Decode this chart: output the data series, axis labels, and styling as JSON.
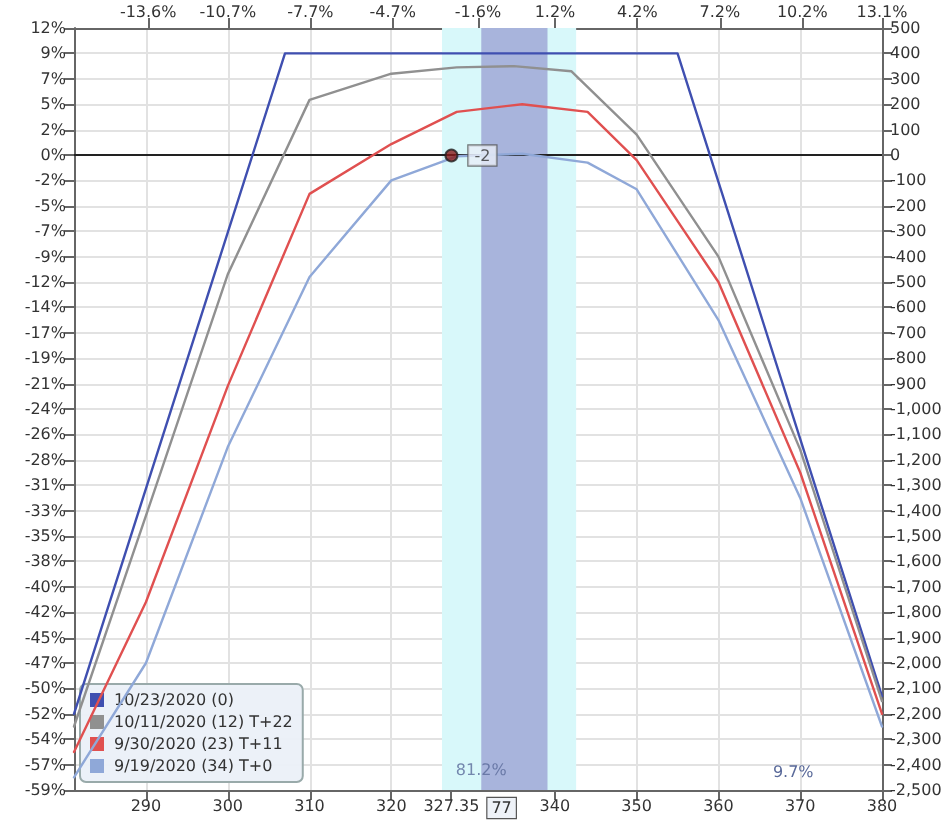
{
  "chart_data": {
    "type": "line",
    "x": [
      281.2,
      290,
      300,
      310,
      320,
      328,
      336,
      344,
      350,
      360,
      370,
      380
    ],
    "series": [
      {
        "name": "10/23/2020 (0)",
        "color": "#3f4fb0",
        "x": [
          281.2,
          307,
          355,
          380
        ],
        "values": [
          -2200,
          400,
          400,
          -2130
        ]
      },
      {
        "name": "10/11/2020 (12) T+22",
        "color": "#909090",
        "x": [
          281.2,
          290,
          300,
          310,
          320,
          328,
          335,
          342,
          350,
          360,
          370,
          380
        ],
        "values": [
          -2250,
          -1420,
          -470,
          217,
          320,
          345,
          350,
          330,
          80,
          -400,
          -1160,
          -2150
        ]
      },
      {
        "name": "9/30/2020 (23) T+11",
        "color": "#e05050",
        "values": [
          -2350,
          -1760,
          -910,
          -153,
          43,
          170,
          200,
          170,
          -20,
          -500,
          -1250,
          -2200
        ]
      },
      {
        "name": "9/19/2020 (34) T+0",
        "color": "#8fa8d8",
        "values": [
          -2450,
          -2000,
          -1150,
          -480,
          -100,
          -5,
          5,
          -30,
          -135,
          -650,
          -1350,
          -2250
        ]
      }
    ],
    "xlim": [
      281.2,
      380
    ],
    "xticks": [
      290,
      300,
      310,
      320,
      {
        "value": 327.35,
        "label": "327.35"
      },
      340,
      350,
      360,
      370,
      380
    ],
    "x2lim": [
      -16.3,
      13.1
    ],
    "x2ticks": [
      {
        "value": -13.6,
        "label": "-13.6%"
      },
      {
        "value": -10.7,
        "label": "-10.7%"
      },
      {
        "value": -7.7,
        "label": "-7.7%"
      },
      {
        "value": -4.7,
        "label": "-4.7%"
      },
      {
        "value": -1.6,
        "label": "-1.6%"
      },
      {
        "value": 1.2,
        "label": "1.2%"
      },
      {
        "value": 4.2,
        "label": "4.2%"
      },
      {
        "value": 7.2,
        "label": "7.2%"
      },
      {
        "value": 10.2,
        "label": "10.2%"
      },
      {
        "value": 13.1,
        "label": "13.1%"
      }
    ],
    "ylim": [
      -2500,
      500
    ],
    "yticks": [
      500,
      400,
      300,
      200,
      100,
      0,
      -100,
      -200,
      -300,
      -400,
      -500,
      -600,
      -700,
      -800,
      -900,
      {
        "value": -1000,
        "label": "-1,000"
      },
      {
        "value": -1100,
        "label": "-1,100"
      },
      {
        "value": -1200,
        "label": "-1,200"
      },
      {
        "value": -1300,
        "label": "-1,300"
      },
      {
        "value": -1400,
        "label": "-1,400"
      },
      {
        "value": -1500,
        "label": "-1,500"
      },
      {
        "value": -1600,
        "label": "-1,600"
      },
      {
        "value": -1700,
        "label": "-1,700"
      },
      {
        "value": -1800,
        "label": "-1,800"
      },
      {
        "value": -1900,
        "label": "-1,900"
      },
      {
        "value": -2000,
        "label": "-2,000"
      },
      {
        "value": -2100,
        "label": "-2,100"
      },
      {
        "value": -2200,
        "label": "-2,200"
      },
      {
        "value": -2300,
        "label": "-2,300"
      },
      {
        "value": -2400,
        "label": "-2,400"
      },
      {
        "value": -2500,
        "label": "-2,500"
      }
    ],
    "y2lim": [
      -59,
      11.8
    ],
    "y2ticks": [
      {
        "value": 11.8,
        "label": "12%"
      },
      {
        "value": 9.44,
        "label": "9%"
      },
      {
        "value": 7.08,
        "label": "7%"
      },
      {
        "value": 4.72,
        "label": "5%"
      },
      {
        "value": 2.36,
        "label": "2%"
      },
      {
        "value": 0,
        "label": "0%"
      },
      {
        "value": -2.36,
        "label": "-2%"
      },
      {
        "value": -4.72,
        "label": "-5%"
      },
      {
        "value": -7.08,
        "label": "-7%"
      },
      {
        "value": -9.44,
        "label": "-9%"
      },
      {
        "value": -11.8,
        "label": "-12%"
      },
      {
        "value": -14.16,
        "label": "-14%"
      },
      {
        "value": -16.52,
        "label": "-17%"
      },
      {
        "value": -18.88,
        "label": "-19%"
      },
      {
        "value": -21.24,
        "label": "-21%"
      },
      {
        "value": -23.6,
        "label": "-24%"
      },
      {
        "value": -25.96,
        "label": "-26%"
      },
      {
        "value": -28.32,
        "label": "-28%"
      },
      {
        "value": -30.68,
        "label": "-31%"
      },
      {
        "value": -33.04,
        "label": "-33%"
      },
      {
        "value": -35.4,
        "label": "-35%"
      },
      {
        "value": -37.76,
        "label": "-38%"
      },
      {
        "value": -40.12,
        "label": "-40%"
      },
      {
        "value": -42.48,
        "label": "-42%"
      },
      {
        "value": -44.84,
        "label": "-45%"
      },
      {
        "value": -47.2,
        "label": "-47%"
      },
      {
        "value": -49.56,
        "label": "-50%"
      },
      {
        "value": -51.92,
        "label": "-52%"
      },
      {
        "value": -54.28,
        "label": "-54%"
      },
      {
        "value": -56.64,
        "label": "-57%"
      },
      {
        "value": -59,
        "label": "-59%"
      }
    ],
    "bands": [
      {
        "axis": "x",
        "from": 326.2,
        "to": 342.6,
        "color": "#d8f8fa"
      },
      {
        "axis": "x",
        "from": 331,
        "to": 339.1,
        "color": "#a8b4dc"
      }
    ],
    "ref_lines": [
      {
        "axis": "y",
        "value": 0,
        "color": "#222222"
      }
    ],
    "annotations": [
      {
        "text": "-2",
        "x": 327.35,
        "y": -2
      },
      {
        "text": "81.2%",
        "x": 331,
        "y": -2420
      },
      "77",
      "9.7%"
    ],
    "grid": true,
    "legend": "bottom left",
    "marker": "none",
    "line_style": "solid"
  }
}
